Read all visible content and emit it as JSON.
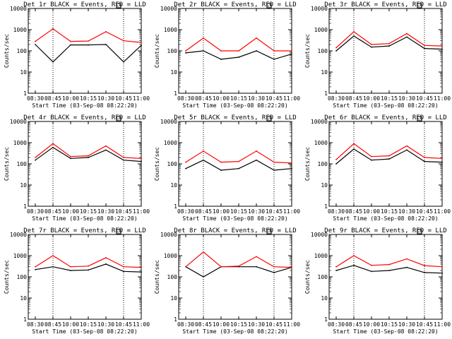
{
  "figure": {
    "ylabel": "Counts/sec",
    "xlabel": "Start Time (03-Sep-08 08:22:20)",
    "x_tick_labels": [
      "08:30",
      "08:45",
      "10:00",
      "10:15",
      "10:30",
      "10:45",
      "11:00"
    ],
    "y_tick_labels": [
      "1",
      "10",
      "100",
      "1000",
      "10000"
    ],
    "colors": {
      "events": "#000000",
      "lld": "#ff0000",
      "axes": "#000000",
      "background": "#ffffff"
    },
    "box_icon": "small-square-marker-icon"
  },
  "chart_data": [
    {
      "type": "line",
      "title": "Det 1r BLACK = Events, RED = LLD",
      "x": [
        "08:30",
        "08:45",
        "10:00",
        "10:15",
        "10:30",
        "10:45",
        "11:00"
      ],
      "y_scale": "log",
      "ylim": [
        1,
        10000
      ],
      "grid": false,
      "vlines_at": [
        "08:45",
        "10:45"
      ],
      "series": [
        {
          "name": "Events",
          "color": "#000000",
          "y": [
            200,
            30,
            190,
            190,
            200,
            30,
            180
          ]
        },
        {
          "name": "LLD",
          "color": "#ff0000",
          "y": [
            280,
            1100,
            280,
            290,
            800,
            300,
            250
          ]
        }
      ]
    },
    {
      "type": "line",
      "title": "Det 2r BLACK = Events, RED = LLD",
      "x": [
        "08:30",
        "08:45",
        "10:00",
        "10:15",
        "10:30",
        "10:45",
        "11:00"
      ],
      "y_scale": "log",
      "ylim": [
        1,
        10000
      ],
      "grid": false,
      "vlines_at": [
        "08:45",
        "10:45"
      ],
      "series": [
        {
          "name": "Events",
          "color": "#000000",
          "y": [
            80,
            100,
            40,
            50,
            100,
            40,
            70
          ]
        },
        {
          "name": "LLD",
          "color": "#ff0000",
          "y": [
            100,
            400,
            100,
            100,
            400,
            100,
            100
          ]
        }
      ]
    },
    {
      "type": "line",
      "title": "Det 3r BLACK = Events, RED = LLD",
      "x": [
        "08:30",
        "08:45",
        "10:00",
        "10:15",
        "10:30",
        "10:45",
        "11:00"
      ],
      "y_scale": "log",
      "ylim": [
        1,
        10000
      ],
      "grid": false,
      "vlines_at": [
        "08:45",
        "10:45"
      ],
      "series": [
        {
          "name": "Events",
          "color": "#000000",
          "y": [
            100,
            500,
            150,
            170,
            450,
            130,
            120
          ]
        },
        {
          "name": "LLD",
          "color": "#ff0000",
          "y": [
            140,
            800,
            200,
            220,
            650,
            180,
            170
          ]
        }
      ]
    },
    {
      "type": "line",
      "title": "Det 4r BLACK = Events, RED = LLD",
      "x": [
        "08:30",
        "08:45",
        "10:00",
        "10:15",
        "10:30",
        "10:45",
        "11:00"
      ],
      "y_scale": "log",
      "ylim": [
        1,
        10000
      ],
      "grid": false,
      "vlines_at": [
        "08:45",
        "10:45"
      ],
      "series": [
        {
          "name": "Events",
          "color": "#000000",
          "y": [
            150,
            600,
            180,
            200,
            450,
            150,
            130
          ]
        },
        {
          "name": "LLD",
          "color": "#ff0000",
          "y": [
            200,
            900,
            220,
            240,
            700,
            200,
            180
          ]
        }
      ]
    },
    {
      "type": "line",
      "title": "Det 5r BLACK = Events, RED = LLD",
      "x": [
        "08:30",
        "08:45",
        "10:00",
        "10:15",
        "10:30",
        "10:45",
        "11:00"
      ],
      "y_scale": "log",
      "ylim": [
        1,
        10000
      ],
      "grid": false,
      "vlines_at": [
        "08:45",
        "10:45"
      ],
      "series": [
        {
          "name": "Events",
          "color": "#000000",
          "y": [
            60,
            150,
            50,
            60,
            150,
            50,
            60
          ]
        },
        {
          "name": "LLD",
          "color": "#ff0000",
          "y": [
            120,
            400,
            120,
            130,
            400,
            120,
            110
          ]
        }
      ]
    },
    {
      "type": "line",
      "title": "Det 6r BLACK = Events, RED = LLD",
      "x": [
        "08:30",
        "08:45",
        "10:00",
        "10:15",
        "10:30",
        "10:45",
        "11:00"
      ],
      "y_scale": "log",
      "ylim": [
        1,
        10000
      ],
      "grid": false,
      "vlines_at": [
        "08:45",
        "10:45"
      ],
      "series": [
        {
          "name": "Events",
          "color": "#000000",
          "y": [
            100,
            500,
            150,
            170,
            450,
            130,
            120
          ]
        },
        {
          "name": "LLD",
          "color": "#ff0000",
          "y": [
            160,
            900,
            220,
            240,
            700,
            200,
            180
          ]
        }
      ]
    },
    {
      "type": "line",
      "title": "Det 7r BLACK = Events, RED = LLD",
      "x": [
        "08:30",
        "08:45",
        "10:00",
        "10:15",
        "10:30",
        "10:45",
        "11:00"
      ],
      "y_scale": "log",
      "ylim": [
        1,
        10000
      ],
      "grid": false,
      "vlines_at": [
        "08:45",
        "10:45"
      ],
      "series": [
        {
          "name": "Events",
          "color": "#000000",
          "y": [
            220,
            300,
            200,
            210,
            400,
            180,
            170
          ]
        },
        {
          "name": "LLD",
          "color": "#ff0000",
          "y": [
            300,
            1000,
            300,
            320,
            800,
            300,
            280
          ]
        }
      ]
    },
    {
      "type": "line",
      "title": "Det 8r BLACK = Events, RED = LLD",
      "x": [
        "08:30",
        "08:45",
        "10:00",
        "10:15",
        "10:30",
        "10:45",
        "11:00"
      ],
      "y_scale": "log",
      "ylim": [
        1,
        10000
      ],
      "grid": false,
      "vlines_at": [
        "08:45",
        "10:45"
      ],
      "series": [
        {
          "name": "Events",
          "color": "#000000",
          "y": [
            300,
            100,
            300,
            300,
            300,
            160,
            280
          ]
        },
        {
          "name": "LLD",
          "color": "#ff0000",
          "y": [
            300,
            1500,
            300,
            320,
            900,
            300,
            280
          ]
        }
      ]
    },
    {
      "type": "line",
      "title": "Det 9r BLACK = Events, RED = LLD",
      "x": [
        "08:30",
        "08:45",
        "10:00",
        "10:15",
        "10:30",
        "10:45",
        "11:00"
      ],
      "y_scale": "log",
      "ylim": [
        1,
        10000
      ],
      "grid": false,
      "vlines_at": [
        "08:45",
        "10:45"
      ],
      "series": [
        {
          "name": "Events",
          "color": "#000000",
          "y": [
            200,
            350,
            180,
            200,
            280,
            160,
            150
          ]
        },
        {
          "name": "LLD",
          "color": "#ff0000",
          "y": [
            300,
            1000,
            350,
            380,
            700,
            340,
            300
          ]
        }
      ]
    }
  ]
}
